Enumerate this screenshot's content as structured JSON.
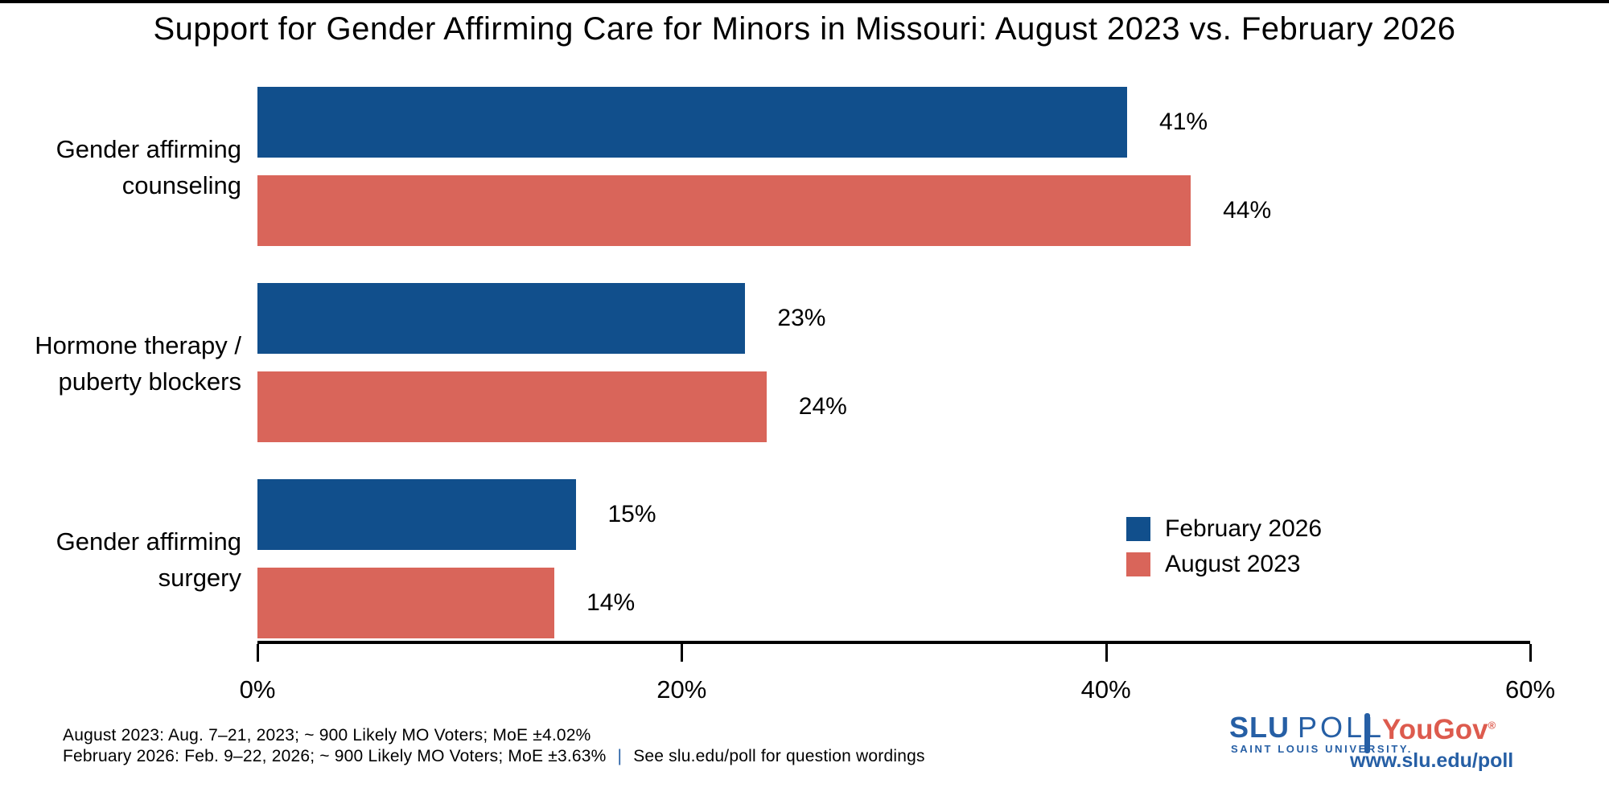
{
  "chart_data": {
    "type": "bar",
    "orientation": "horizontal",
    "title": "Support for Gender Affirming Care for Minors in Missouri: August 2023 vs. February 2026",
    "categories": [
      "Gender affirming counseling",
      "Hormone therapy / puberty blockers",
      "Gender affirming surgery"
    ],
    "categories_display": [
      [
        "Gender affirming",
        "counseling"
      ],
      [
        "Hormone therapy /",
        "puberty blockers"
      ],
      [
        "Gender affirming",
        "surgery"
      ]
    ],
    "series": [
      {
        "name": "February 2026",
        "color": "#114F8C",
        "values": [
          41,
          23,
          15
        ],
        "value_labels": [
          "41%",
          "23%",
          "15%"
        ]
      },
      {
        "name": "August 2023",
        "color": "#D9655A",
        "values": [
          44,
          24,
          14
        ],
        "value_labels": [
          "44%",
          "24%",
          "14%"
        ]
      }
    ],
    "xlim": [
      0,
      60
    ],
    "x_ticks": [
      {
        "label": "0%",
        "value": 0
      },
      {
        "label": "20%",
        "value": 20
      },
      {
        "label": "40%",
        "value": 40
      },
      {
        "label": "60%",
        "value": 60
      }
    ],
    "grid": false,
    "legend_position": "right-middle",
    "bar_value_labels_outside": true
  },
  "footer": {
    "line1": "August 2023: Aug. 7–21, 2023; ~ 900 Likely MO Voters; MoE ±4.02%",
    "line2_left": "February 2026: Feb. 9–22, 2026; ~ 900 Likely MO Voters; MoE ±3.63%",
    "separator": "|",
    "line2_right": "See slu.edu/poll for question wordings",
    "separator_color": "#265FA5"
  },
  "branding": {
    "slu": "SLU",
    "poll": "POLL",
    "university": "SAINT LOUIS UNIVERSITY.",
    "yougov": "YouGov",
    "registered_mark": "®",
    "url": "www.slu.edu/poll",
    "slu_blue": "#265FA5",
    "yougov_red": "#DD5B4E"
  },
  "colors": {
    "february_2026": "#114F8C",
    "august_2023": "#D9655A",
    "axis": "#000000",
    "text": "#000000"
  }
}
